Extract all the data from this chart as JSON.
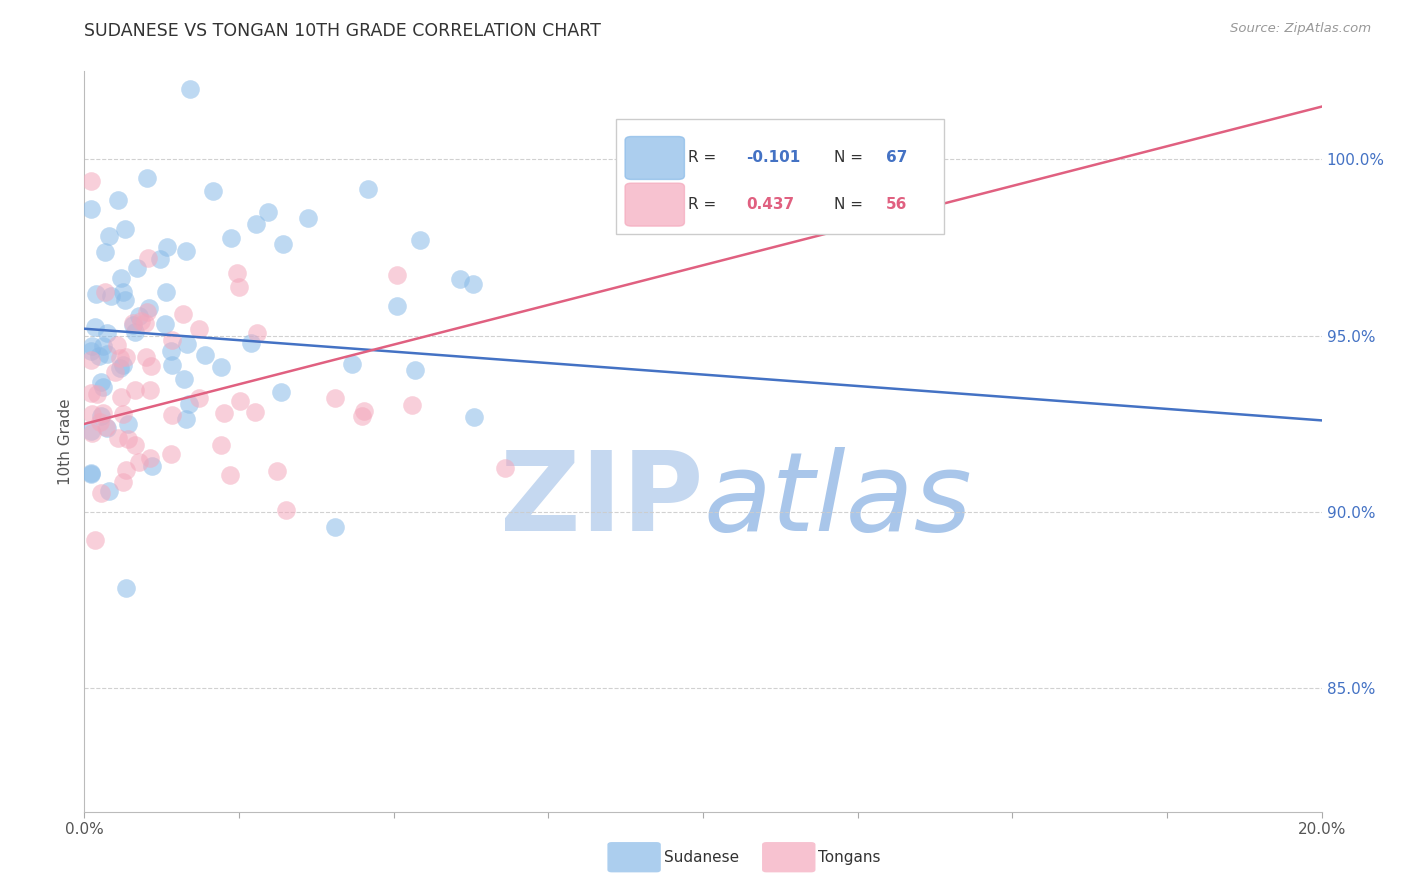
{
  "title": "SUDANESE VS TONGAN 10TH GRADE CORRELATION CHART",
  "source": "Source: ZipAtlas.com",
  "ylabel": "10th Grade",
  "y_tick_values": [
    0.85,
    0.9,
    0.95,
    1.0
  ],
  "x_lim": [
    0.0,
    0.2
  ],
  "y_lim": [
    0.815,
    1.025
  ],
  "blue_R": -0.101,
  "blue_N": 67,
  "pink_R": 0.437,
  "pink_N": 56,
  "blue_color": "#89BAE8",
  "pink_color": "#F4A8BC",
  "blue_line_color": "#4472C4",
  "pink_line_color": "#E06080",
  "watermark_zip_color": "#C5D8F0",
  "watermark_atlas_color": "#A0C0E8",
  "grid_color": "#CCCCCC",
  "tick_color_y": "#4472C4",
  "tick_color_x": "#555555",
  "title_color": "#333333",
  "source_color": "#999999",
  "ylabel_color": "#555555"
}
